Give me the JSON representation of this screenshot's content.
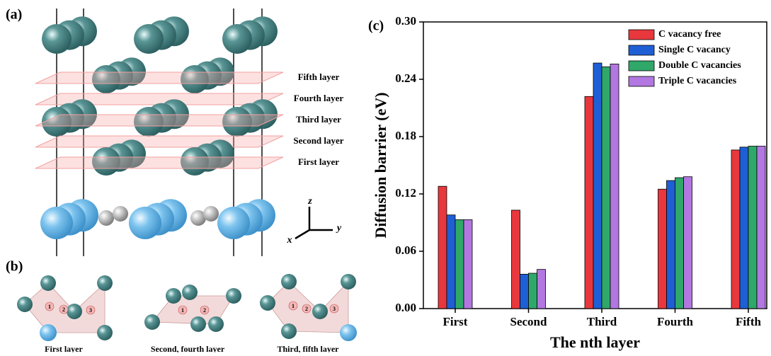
{
  "panel_a": {
    "label": "(a)",
    "layers": [
      "Fifth layer",
      "Fourth layer",
      "Third layer",
      "Second layer",
      "First layer"
    ],
    "axes": [
      "z",
      "y",
      "x"
    ]
  },
  "panel_b": {
    "label": "(b)",
    "structures": [
      {
        "caption": "First layer",
        "sites": [
          "1",
          "2",
          "3"
        ]
      },
      {
        "caption": "Second, fourth layer",
        "sites": [
          "1",
          "2"
        ]
      },
      {
        "caption": "Third, fifth layer",
        "sites": [
          "1",
          "2",
          "3"
        ]
      }
    ]
  },
  "chart_data": {
    "type": "bar",
    "panel_label": "(c)",
    "x_label": "The nth layer",
    "y_label": "Diffusion barrier (eV)",
    "categories": [
      "First",
      "Second",
      "Third",
      "Fourth",
      "Fifth"
    ],
    "series": [
      {
        "name": "C vacancy free",
        "color": "#e8383d",
        "values": [
          0.128,
          0.103,
          0.222,
          0.125,
          0.166
        ]
      },
      {
        "name": "Single C vacancy",
        "color": "#1f5fd6",
        "values": [
          0.098,
          0.036,
          0.257,
          0.134,
          0.169
        ]
      },
      {
        "name": "Double C vacancies",
        "color": "#2fa86a",
        "values": [
          0.093,
          0.037,
          0.253,
          0.137,
          0.17
        ]
      },
      {
        "name": "Triple C vacancies",
        "color": "#b277e0",
        "values": [
          0.093,
          0.041,
          0.256,
          0.138,
          0.17
        ]
      }
    ],
    "ylim": [
      0,
      0.3
    ],
    "yticks": [
      {
        "value": 0,
        "label": "0.00"
      },
      0.06,
      0.12,
      0.18,
      0.24,
      {
        "value": 0.3,
        "label": "0.30"
      }
    ],
    "legend": "top-right"
  }
}
